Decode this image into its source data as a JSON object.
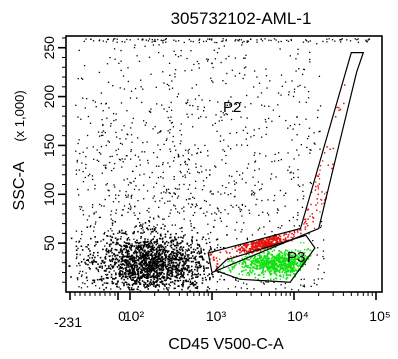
{
  "chart_data": {
    "type": "scatter",
    "title": "305732102-AML-1",
    "xlabel": "CD45 V500-C-A",
    "ylabel": "SSC-A",
    "ylabel_unit": "(x 1,000)",
    "x_scale": "biexponential",
    "x_range": [
      -231,
      262144
    ],
    "y_range": [
      0,
      262
    ],
    "x_ticks": [
      {
        "value": -231,
        "label": "-231"
      },
      {
        "value": 0,
        "label": "0"
      },
      {
        "value": 100,
        "label": "10²"
      },
      {
        "value": 1000,
        "label": "10³"
      },
      {
        "value": 10000,
        "label": "10⁴"
      },
      {
        "value": 100000,
        "label": "10⁵"
      }
    ],
    "y_ticks": [
      {
        "value": 50,
        "label": "50"
      },
      {
        "value": 100,
        "label": "100"
      },
      {
        "value": 150,
        "label": "150"
      },
      {
        "value": 200,
        "label": "200"
      },
      {
        "value": 250,
        "label": "250"
      }
    ],
    "gates": [
      {
        "name": "P2",
        "color": "#000000",
        "vertices": [
          [
            900,
            40
          ],
          [
            12000,
            65
          ],
          [
            50000,
            245
          ],
          [
            70000,
            245
          ],
          [
            58000,
            225
          ],
          [
            20000,
            65
          ],
          [
            1000,
            20
          ]
        ]
      },
      {
        "name": "P3",
        "color": "#000000",
        "vertices": [
          [
            1500,
            33
          ],
          [
            14000,
            58
          ],
          [
            18000,
            45
          ],
          [
            9000,
            10
          ],
          [
            2200,
            13
          ],
          [
            1100,
            22
          ]
        ]
      }
    ],
    "populations": [
      {
        "name": "ungated events",
        "color": "#000000"
      },
      {
        "name": "P2",
        "color": "#e3120b"
      },
      {
        "name": "P3",
        "color": "#14e014"
      }
    ]
  }
}
